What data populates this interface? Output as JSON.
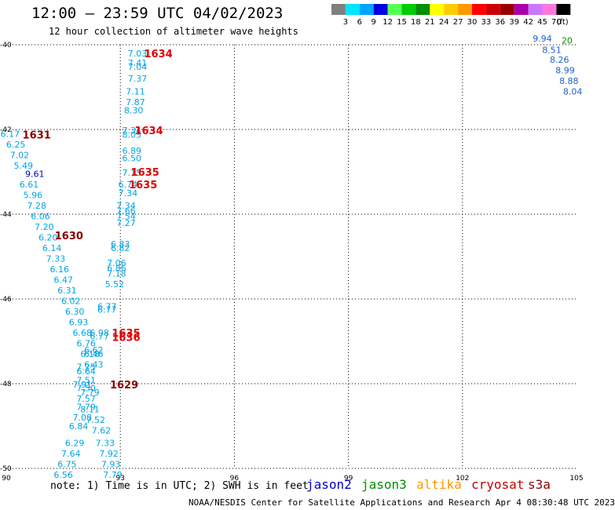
{
  "header": {
    "title": "12:00 — 23:59 UTC 04/02/2023",
    "subtitle": "12 hour collection of altimeter wave heights"
  },
  "colorbar": {
    "bins": [
      {
        "label": "3",
        "color": "#7f7f7f"
      },
      {
        "label": "6",
        "color": "#00e5ff"
      },
      {
        "label": "9",
        "color": "#00a5ff"
      },
      {
        "label": "12",
        "color": "#0000e0"
      },
      {
        "label": "15",
        "color": "#55ff55"
      },
      {
        "label": "18",
        "color": "#00cc00"
      },
      {
        "label": "21",
        "color": "#008f00"
      },
      {
        "label": "24",
        "color": "#ffff00"
      },
      {
        "label": "27",
        "color": "#ffcc00"
      },
      {
        "label": "30",
        "color": "#ff9900"
      },
      {
        "label": "33",
        "color": "#ff0000"
      },
      {
        "label": "36",
        "color": "#cc0000"
      },
      {
        "label": "39",
        "color": "#990000"
      },
      {
        "label": "42",
        "color": "#aa00aa"
      },
      {
        "label": "45",
        "color": "#cc77ff"
      },
      {
        "label": "70",
        "color": "#ff77dd"
      },
      {
        "label": "",
        "color": "#000000"
      }
    ],
    "unit": "(ft)"
  },
  "map": {
    "lon_range": [
      90,
      105
    ],
    "lat_range": [
      -50,
      -40
    ],
    "lon_ticks": [
      "90",
      "93",
      "96",
      "99",
      "102",
      "105"
    ],
    "lat_ticks": [
      {
        "lat": -40,
        "label": "-40"
      },
      {
        "lat": -42,
        "label": "-42"
      },
      {
        "lat": -44,
        "label": "-44"
      },
      {
        "lat": -46,
        "label": "-46"
      },
      {
        "lat": -48,
        "label": "-48"
      },
      {
        "lat": -50,
        "label": "-50"
      }
    ]
  },
  "chart_data": {
    "type": "scatter",
    "series": [
      {
        "name": "cryosat",
        "color": "#00a5e6",
        "points": [
          {
            "lon": 93.45,
            "lat": -40.2,
            "value": "7.03"
          },
          {
            "lon": 93.45,
            "lat": -40.43,
            "value": "7.41"
          },
          {
            "lon": 93.45,
            "lat": -40.52,
            "value": "7.04"
          },
          {
            "lon": 93.45,
            "lat": -40.8,
            "value": "7.37"
          },
          {
            "lon": 93.4,
            "lat": -41.1,
            "value": "7.11"
          },
          {
            "lon": 93.4,
            "lat": -41.35,
            "value": "7.87"
          },
          {
            "lon": 93.35,
            "lat": -41.55,
            "value": "8.30"
          },
          {
            "lon": 93.3,
            "lat": -42.02,
            "value": "7.34"
          },
          {
            "lon": 93.3,
            "lat": -42.12,
            "value": "8.03"
          },
          {
            "lon": 93.3,
            "lat": -42.5,
            "value": "6.89"
          },
          {
            "lon": 93.3,
            "lat": -42.68,
            "value": "6.50"
          },
          {
            "lon": 93.3,
            "lat": -43.02,
            "value": "7.15"
          },
          {
            "lon": 93.2,
            "lat": -43.3,
            "value": "6.74"
          },
          {
            "lon": 93.2,
            "lat": -43.5,
            "value": "7.34"
          },
          {
            "lon": 93.15,
            "lat": -43.8,
            "value": "7.34"
          },
          {
            "lon": 93.15,
            "lat": -43.92,
            "value": "7.66"
          },
          {
            "lon": 93.15,
            "lat": -44.05,
            "value": "7.54"
          },
          {
            "lon": 93.15,
            "lat": -44.2,
            "value": "7.27"
          },
          {
            "lon": 93.0,
            "lat": -44.7,
            "value": "6.83"
          },
          {
            "lon": 93.0,
            "lat": -44.8,
            "value": "6.82"
          },
          {
            "lon": 92.9,
            "lat": -45.15,
            "value": "7.06"
          },
          {
            "lon": 92.9,
            "lat": -45.27,
            "value": "6.86"
          },
          {
            "lon": 92.9,
            "lat": -45.4,
            "value": "7.18"
          },
          {
            "lon": 92.85,
            "lat": -45.65,
            "value": "5.52"
          },
          {
            "lon": 92.65,
            "lat": -46.18,
            "value": "6.77"
          },
          {
            "lon": 92.65,
            "lat": -46.25,
            "value": "6.77"
          },
          {
            "lon": 92.45,
            "lat": -46.8,
            "value": "6.98"
          },
          {
            "lon": 92.45,
            "lat": -46.88,
            "value": "6.77"
          },
          {
            "lon": 92.3,
            "lat": -47.2,
            "value": "6.62"
          },
          {
            "lon": 92.3,
            "lat": -47.3,
            "value": "6.46"
          },
          {
            "lon": 92.1,
            "lat": -47.6,
            "value": "7.25"
          },
          {
            "lon": 92.1,
            "lat": -47.7,
            "value": "6.64"
          },
          {
            "lon": 92.1,
            "lat": -47.92,
            "value": "7.51"
          },
          {
            "lon": 92.0,
            "lat": -48.02,
            "value": "7.91"
          },
          {
            "lon": 92.1,
            "lat": -48.1,
            "value": "7.50"
          },
          {
            "lon": 92.1,
            "lat": -48.35,
            "value": "7.57"
          },
          {
            "lon": 92.2,
            "lat": -48.6,
            "value": "8.11"
          },
          {
            "lon": 92.35,
            "lat": -48.85,
            "value": "7.52"
          },
          {
            "lon": 92.5,
            "lat": -49.1,
            "value": "7.62"
          },
          {
            "lon": 92.6,
            "lat": -49.4,
            "value": "7.33"
          },
          {
            "lon": 92.7,
            "lat": -49.65,
            "value": "7.92"
          },
          {
            "lon": 92.75,
            "lat": -49.9,
            "value": "7.93"
          },
          {
            "lon": 92.8,
            "lat": -50.15,
            "value": "7.79"
          }
        ]
      },
      {
        "name": "s3a",
        "color": "#00a5e6",
        "points": [
          {
            "lon": 90.1,
            "lat": -42.1,
            "value": "6.17"
          },
          {
            "lon": 90.25,
            "lat": -42.35,
            "value": "6.25"
          },
          {
            "lon": 90.35,
            "lat": -42.6,
            "value": "7.02"
          },
          {
            "lon": 90.45,
            "lat": -42.85,
            "value": "5.49"
          },
          {
            "lon": 90.6,
            "lat": -43.3,
            "value": "6.61"
          },
          {
            "lon": 90.7,
            "lat": -43.55,
            "value": "5.96"
          },
          {
            "lon": 90.8,
            "lat": -43.8,
            "value": "7.28"
          },
          {
            "lon": 90.9,
            "lat": -44.05,
            "value": "6.06"
          },
          {
            "lon": 91.0,
            "lat": -44.3,
            "value": "7.20"
          },
          {
            "lon": 91.1,
            "lat": -44.55,
            "value": "6.20"
          },
          {
            "lon": 91.2,
            "lat": -44.8,
            "value": "6.14"
          },
          {
            "lon": 91.3,
            "lat": -45.05,
            "value": "7.33"
          },
          {
            "lon": 91.4,
            "lat": -45.3,
            "value": "6.16"
          },
          {
            "lon": 91.5,
            "lat": -45.55,
            "value": "6.47"
          },
          {
            "lon": 91.6,
            "lat": -45.8,
            "value": "6.31"
          },
          {
            "lon": 91.7,
            "lat": -46.05,
            "value": "6.02"
          },
          {
            "lon": 91.8,
            "lat": -46.3,
            "value": "6.30"
          },
          {
            "lon": 91.9,
            "lat": -46.55,
            "value": "6.93"
          },
          {
            "lon": 92.0,
            "lat": -46.8,
            "value": "6.68"
          },
          {
            "lon": 92.1,
            "lat": -47.05,
            "value": "6.76"
          },
          {
            "lon": 92.2,
            "lat": -47.3,
            "value": "6.18"
          },
          {
            "lon": 92.3,
            "lat": -47.55,
            "value": "6.43"
          },
          {
            "lon": 92.2,
            "lat": -48.2,
            "value": "7.79"
          },
          {
            "lon": 92.1,
            "lat": -48.55,
            "value": "7.79"
          },
          {
            "lon": 92.0,
            "lat": -48.8,
            "value": "7.08"
          },
          {
            "lon": 91.9,
            "lat": -49.0,
            "value": "6.84"
          },
          {
            "lon": 91.8,
            "lat": -49.4,
            "value": "6.29"
          },
          {
            "lon": 91.7,
            "lat": -49.65,
            "value": "7.64"
          },
          {
            "lon": 91.6,
            "lat": -49.9,
            "value": "6.75"
          },
          {
            "lon": 91.5,
            "lat": -50.15,
            "value": "6.56"
          }
        ]
      },
      {
        "name": "jason2",
        "color": "#0000d0",
        "points": [
          {
            "lon": 90.75,
            "lat": -43.05,
            "value": "9.61"
          }
        ]
      },
      {
        "name": "jason3-track",
        "color": "#1e62c8",
        "points": [
          {
            "lon": 104.1,
            "lat": -39.85,
            "value": "9.94"
          },
          {
            "lon": 104.35,
            "lat": -40.12,
            "value": "8.51"
          },
          {
            "lon": 104.55,
            "lat": -40.35,
            "value": "8.26"
          },
          {
            "lon": 104.7,
            "lat": -40.6,
            "value": "8.99"
          },
          {
            "lon": 104.8,
            "lat": -40.85,
            "value": "8.88"
          },
          {
            "lon": 104.9,
            "lat": -41.1,
            "value": "8.04"
          }
        ]
      },
      {
        "name": "jason3-label",
        "color": "#008f00",
        "points": [
          {
            "lon": 104.75,
            "lat": -39.9,
            "value": "20"
          }
        ]
      }
    ],
    "time_labels": [
      {
        "lon": 94.0,
        "lat": -40.2,
        "value": "1634",
        "color": "#e00000"
      },
      {
        "lon": 93.75,
        "lat": -42.02,
        "value": "1634",
        "color": "#e00000"
      },
      {
        "lon": 90.8,
        "lat": -42.12,
        "value": "1631",
        "color": "#880000"
      },
      {
        "lon": 93.65,
        "lat": -43.0,
        "value": "1635",
        "color": "#e00000"
      },
      {
        "lon": 93.6,
        "lat": -43.3,
        "value": "1635",
        "color": "#e00000"
      },
      {
        "lon": 91.65,
        "lat": -44.5,
        "value": "1630",
        "color": "#880000"
      },
      {
        "lon": 93.15,
        "lat": -46.8,
        "value": "1635",
        "color": "#e00000"
      },
      {
        "lon": 93.15,
        "lat": -46.9,
        "value": "1636",
        "color": "#e00000"
      },
      {
        "lon": 93.1,
        "lat": -48.02,
        "value": "1629",
        "color": "#880000"
      }
    ]
  },
  "footer": {
    "note": "note: 1) Time is in UTC; 2) SWH is in feet",
    "legend": [
      {
        "name": "jason2",
        "color": "#0000cc"
      },
      {
        "name": "jason3",
        "color": "#008f00"
      },
      {
        "name": "altika",
        "color": "#ff9900"
      },
      {
        "name": "cryosat",
        "color": "#cc0000"
      },
      {
        "name": "s3a",
        "color": "#880000"
      }
    ],
    "credit": "NOAA/NESDIS Center for Satellite Applications and Research   Apr  4 08:30:48 UTC 2023"
  }
}
